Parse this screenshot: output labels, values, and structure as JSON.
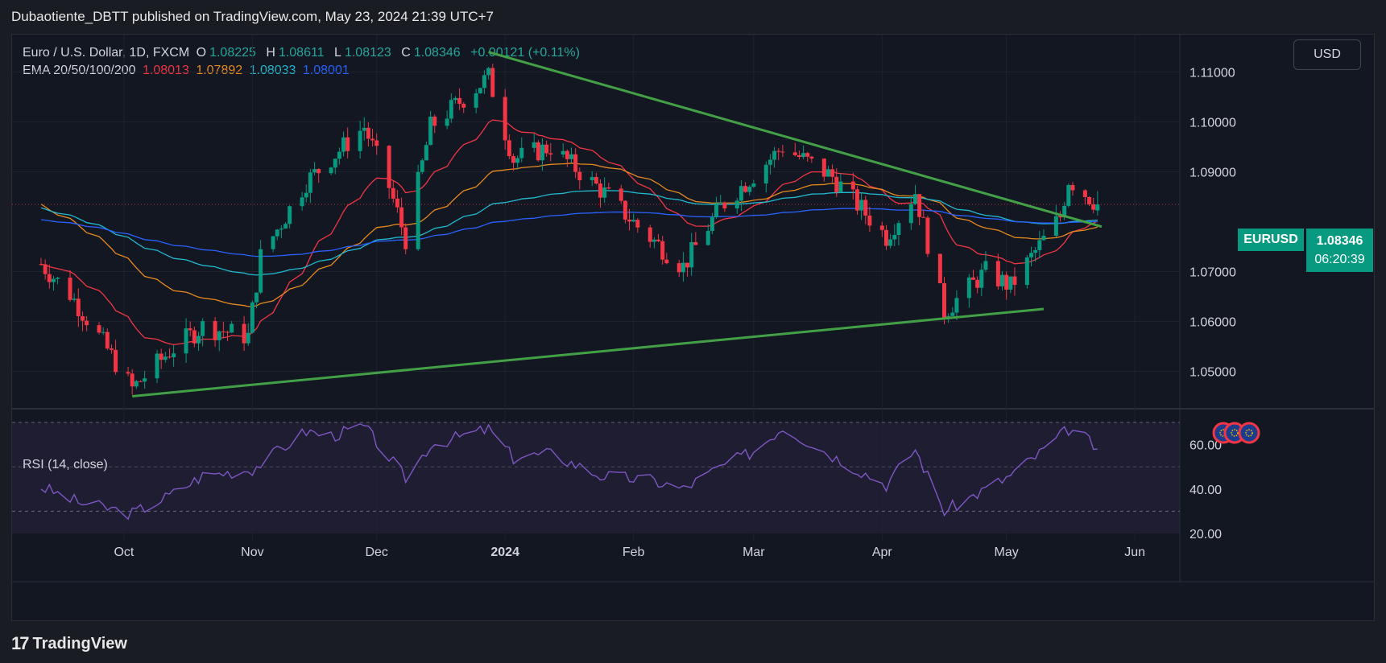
{
  "header": {
    "publisher_line": "Dubaotiente_DBTT published on TradingView.com, May 23, 2024 21:39 UTC+7"
  },
  "legend": {
    "title": "Euro / U.S. Dollar, 1D, FXCM",
    "o_label": "O",
    "o": "1.08225",
    "h_label": "H",
    "h": "1.08611",
    "l_label": "L",
    "l": "1.08123",
    "c_label": "C",
    "c": "1.08346",
    "change": "+0.00121 (+0.11%)",
    "ema_title": "EMA 20/50/100/200",
    "ema_values": [
      "1.08013",
      "1.07892",
      "1.08033",
      "1.08001"
    ]
  },
  "currency_button": "USD",
  "price_tag": {
    "symbol": "EURUSD",
    "price": "1.08346",
    "countdown": "06:20:39"
  },
  "rsi": {
    "label": "RSI (14, close)"
  },
  "footer": {
    "brand": "TradingView",
    "logo_glyph": "17"
  },
  "colors": {
    "up": "#089981",
    "down": "#f23645",
    "ema20": "#f23645",
    "ema50": "#e68a1f",
    "ema100": "#22b8cf",
    "ema200": "#2962ff",
    "trendline": "#43a047",
    "rsi": "#7e57c2"
  },
  "chart_data": [
    {
      "type": "candlestick",
      "title": "Euro / U.S. Dollar, 1D, FXCM",
      "x_ticks": [
        "Oct",
        "Nov",
        "Dec",
        "2024",
        "Feb",
        "Mar",
        "Apr",
        "May",
        "Jun"
      ],
      "y_ticks": [
        "1.11000",
        "1.10000",
        "1.09000",
        "1.07000",
        "1.06000",
        "1.05000"
      ],
      "ylim": [
        1.0425,
        1.1175
      ],
      "ohlc_reference": {
        "open": 1.08225,
        "high": 1.08611,
        "low": 1.08123,
        "close": 1.08346
      },
      "series": [
        {
          "name": "EMA 20",
          "last": 1.08013
        },
        {
          "name": "EMA 50",
          "last": 1.07892
        },
        {
          "name": "EMA 100",
          "last": 1.08033
        },
        {
          "name": "EMA 200",
          "last": 1.08001
        }
      ],
      "close_path": [
        [
          "2023-09-11",
          1.0715
        ],
        [
          "2023-09-18",
          1.0655
        ],
        [
          "2023-09-25",
          1.057
        ],
        [
          "2023-10-03",
          1.0465
        ],
        [
          "2023-10-12",
          1.054
        ],
        [
          "2023-10-20",
          1.059
        ],
        [
          "2023-10-31",
          1.057
        ],
        [
          "2023-11-03",
          1.073
        ],
        [
          "2023-11-14",
          1.088
        ],
        [
          "2023-11-28",
          1.099
        ],
        [
          "2023-12-04",
          1.087
        ],
        [
          "2023-12-08",
          1.0765
        ],
        [
          "2023-12-14",
          1.099
        ],
        [
          "2023-12-28",
          1.109
        ],
        [
          "2024-01-03",
          1.0925
        ],
        [
          "2024-01-12",
          1.095
        ],
        [
          "2024-01-26",
          1.085
        ],
        [
          "2024-02-02",
          1.079
        ],
        [
          "2024-02-13",
          1.071
        ],
        [
          "2024-02-22",
          1.083
        ],
        [
          "2024-03-08",
          1.095
        ],
        [
          "2024-03-20",
          1.089
        ],
        [
          "2024-04-02",
          1.077
        ],
        [
          "2024-04-09",
          1.086
        ],
        [
          "2024-04-16",
          1.062
        ],
        [
          "2024-04-26",
          1.07
        ],
        [
          "2024-05-02",
          1.067
        ],
        [
          "2024-05-14",
          1.081
        ],
        [
          "2024-05-16",
          1.0885
        ],
        [
          "2024-05-23",
          1.0835
        ]
      ],
      "trendlines": [
        {
          "name": "Descending resistance",
          "from": [
            "2023-12-28",
            1.114
          ],
          "to": [
            "2024-05-24",
            1.079
          ]
        },
        {
          "name": "Ascending support",
          "from": [
            "2023-10-03",
            1.045
          ],
          "to": [
            "2024-05-10",
            1.0625
          ]
        }
      ]
    },
    {
      "type": "line",
      "title": "RSI (14, close)",
      "y_ticks": [
        "60.00",
        "40.00",
        "20.00"
      ],
      "ylim": [
        20,
        70
      ],
      "bands": [
        30,
        50,
        70
      ],
      "x": [
        "2023-09-11",
        "2023-09-20",
        "2023-10-03",
        "2023-10-12",
        "2023-10-20",
        "2023-11-01",
        "2023-11-14",
        "2023-11-20",
        "2023-11-28",
        "2023-12-08",
        "2023-12-14",
        "2023-12-28",
        "2024-01-03",
        "2024-01-12",
        "2024-01-24",
        "2024-02-05",
        "2024-02-13",
        "2024-02-22",
        "2024-03-01",
        "2024-03-08",
        "2024-03-20",
        "2024-04-02",
        "2024-04-09",
        "2024-04-16",
        "2024-04-26",
        "2024-05-02",
        "2024-05-09",
        "2024-05-16",
        "2024-05-20",
        "2024-05-23"
      ],
      "values": [
        41,
        34,
        29,
        37,
        46,
        49,
        66,
        64,
        68,
        45,
        60,
        67,
        54,
        56,
        46,
        44,
        40,
        50,
        57,
        68,
        55,
        42,
        58,
        30,
        40,
        46,
        56,
        67,
        63,
        58
      ]
    }
  ]
}
